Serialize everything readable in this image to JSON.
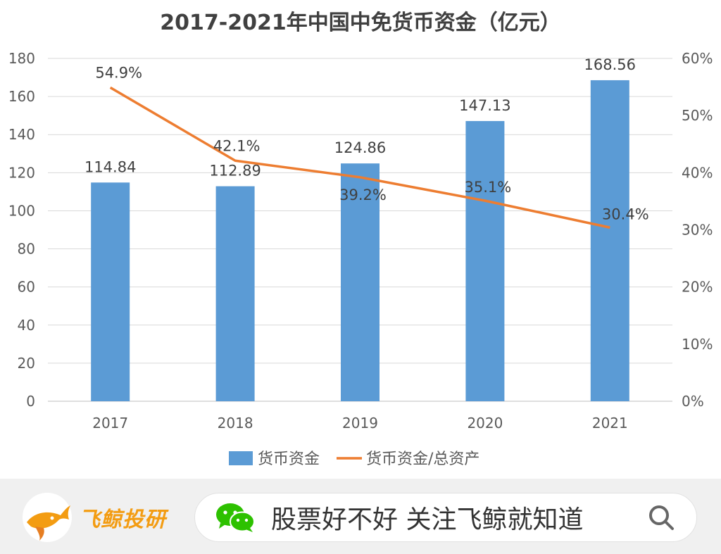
{
  "chart_data": {
    "type": "bar",
    "title": "2017-2021年中国中免货币资金（亿元）",
    "categories": [
      "2017",
      "2018",
      "2019",
      "2020",
      "2021"
    ],
    "series": [
      {
        "name": "货币资金",
        "type": "bar",
        "axis": "left",
        "values": [
          114.84,
          112.89,
          124.86,
          147.13,
          168.56
        ],
        "labels": [
          "114.84",
          "112.89",
          "124.86",
          "147.13",
          "168.56"
        ]
      },
      {
        "name": "货币资金/总资产",
        "type": "line",
        "axis": "right",
        "values": [
          54.9,
          42.1,
          39.2,
          35.1,
          30.4
        ],
        "labels": [
          "54.9%",
          "42.1%",
          "39.2%",
          "35.1%",
          "30.4%"
        ]
      }
    ],
    "y_left": {
      "min": 0,
      "max": 180,
      "ticks": [
        "0",
        "20",
        "40",
        "60",
        "80",
        "100",
        "120",
        "140",
        "160",
        "180"
      ]
    },
    "y_right": {
      "min": 0,
      "max": 60,
      "ticks": [
        "0%",
        "10%",
        "20%",
        "30%",
        "40%",
        "50%",
        "60%"
      ]
    },
    "grid": true,
    "legend_position": "bottom",
    "colors": {
      "bar": "#5b9bd5",
      "line": "#ed7d31"
    }
  },
  "footer": {
    "brand_name": "飞鲸投研",
    "slogan": "股票好不好 关注飞鲸就知道",
    "colors": {
      "brand": "#f39c12",
      "background": "#f0f0f0"
    }
  }
}
